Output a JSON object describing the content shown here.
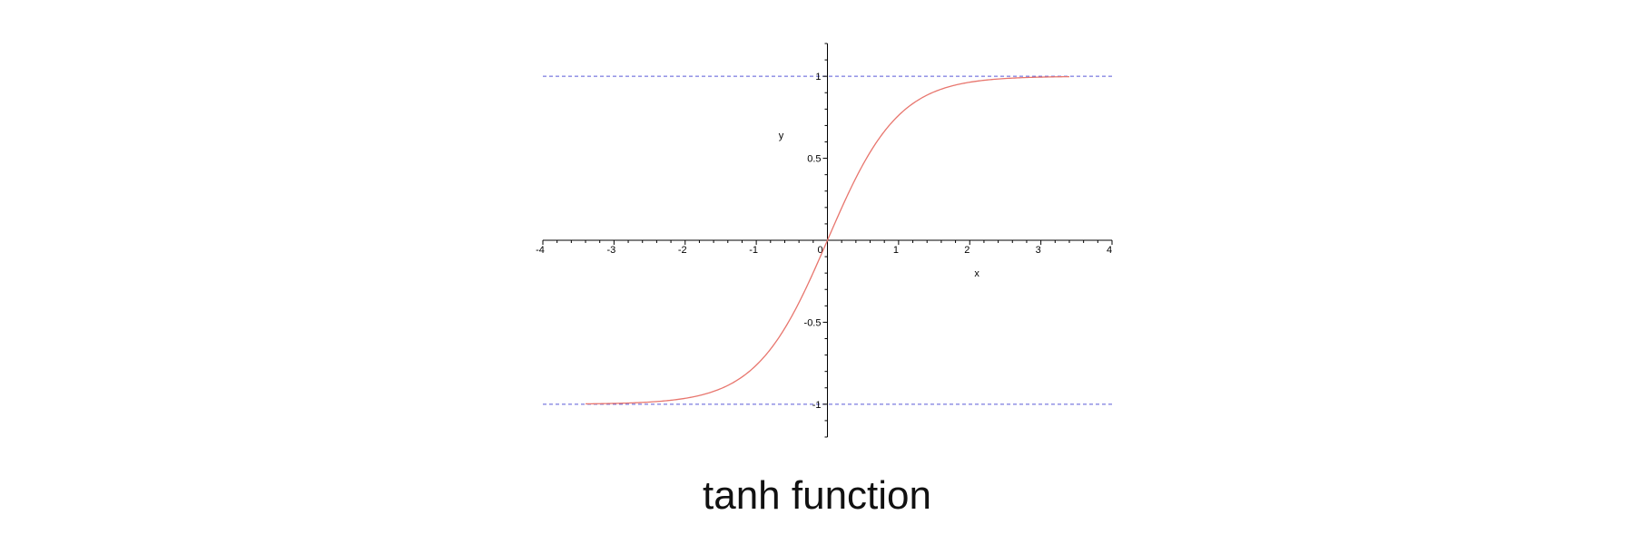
{
  "chart_data": {
    "type": "line",
    "title": "tanh function",
    "xlabel": "x",
    "ylabel": "y",
    "xlim": [
      -4,
      4
    ],
    "ylim": [
      -1.2,
      1.2
    ],
    "x_ticks": [
      -4,
      -3,
      -2,
      -1,
      0,
      1,
      2,
      3,
      4
    ],
    "x_tick_labels": [
      "-4",
      "-3",
      "-2",
      "-1",
      "0",
      "1",
      "2",
      "3",
      "4"
    ],
    "y_ticks": [
      -1,
      -0.5,
      0.5,
      1
    ],
    "y_tick_labels": [
      "-1",
      "-0.5",
      "0.5",
      "1"
    ],
    "grid": false,
    "series": [
      {
        "function": "tanh",
        "color": "#e8766e",
        "x": [
          -3.4,
          -3.0,
          -2.5,
          -2.0,
          -1.5,
          -1.0,
          -0.5,
          0.0,
          0.5,
          1.0,
          1.5,
          2.0,
          2.5,
          3.0,
          3.4
        ],
        "y": [
          -0.998,
          -0.995,
          -0.987,
          -0.964,
          -0.905,
          -0.762,
          -0.462,
          0.0,
          0.462,
          0.762,
          0.905,
          0.964,
          0.987,
          0.995,
          0.998
        ]
      }
    ],
    "asymptotes": [
      {
        "y": 1,
        "color": "#5a5ad8",
        "style": "dashed"
      },
      {
        "y": -1,
        "color": "#5a5ad8",
        "style": "dashed"
      }
    ],
    "axis_color": "#000000"
  }
}
